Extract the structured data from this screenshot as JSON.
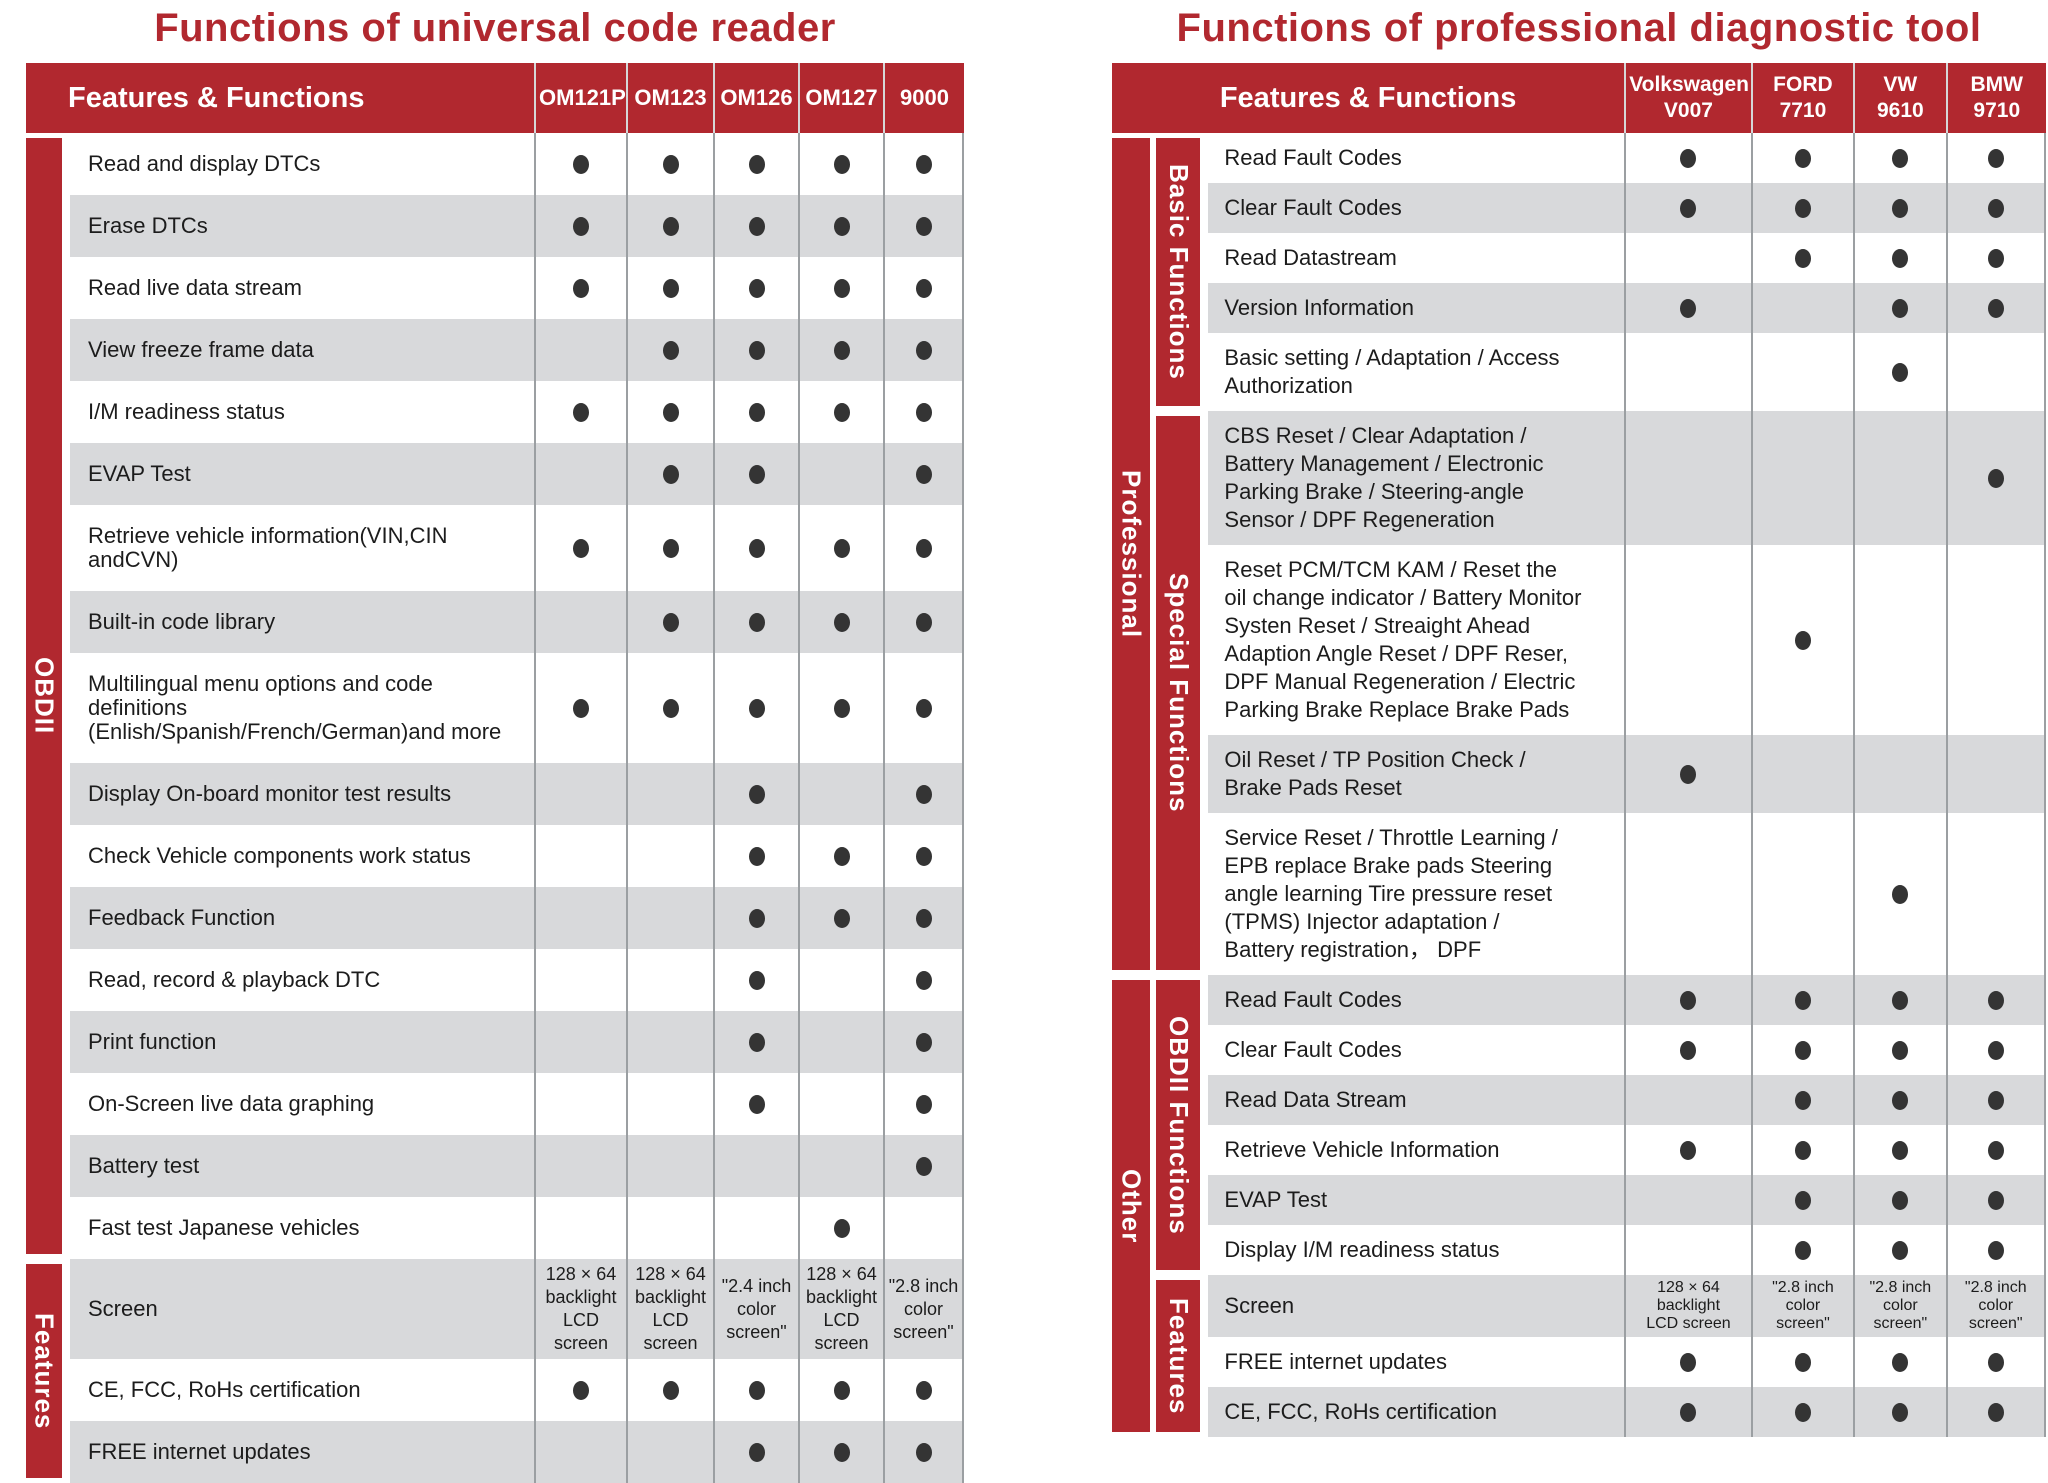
{
  "colors": {
    "brand_red": "#b1282f",
    "row_stripe_gray": "#d8d9db",
    "grid_line": "#9b9fa2",
    "dot": "#343434",
    "page_background": "#ffffff"
  },
  "chart_data": [
    {
      "type": "table",
      "title": "Functions of universal code reader",
      "header": "Features & Functions",
      "columns": [
        "OM121P",
        "OM123",
        "OM126",
        "OM127",
        "9000"
      ],
      "groups": [
        {
          "label": "OBDII",
          "rows": [
            {
              "feature": "Read and display DTCs",
              "values": [
                1,
                1,
                1,
                1,
                1
              ]
            },
            {
              "feature": "Erase DTCs",
              "values": [
                1,
                1,
                1,
                1,
                1
              ]
            },
            {
              "feature": "Read live data stream",
              "values": [
                1,
                1,
                1,
                1,
                1
              ]
            },
            {
              "feature": "View freeze frame data",
              "values": [
                0,
                1,
                1,
                1,
                1
              ]
            },
            {
              "feature": "I/M readiness status",
              "values": [
                1,
                1,
                1,
                1,
                1
              ]
            },
            {
              "feature": "EVAP Test",
              "values": [
                0,
                1,
                1,
                0,
                1
              ]
            },
            {
              "feature": "Retrieve vehicle information(VIN,CIN andCVN)",
              "values": [
                1,
                1,
                1,
                1,
                1
              ]
            },
            {
              "feature": "Built-in code library",
              "values": [
                0,
                1,
                1,
                1,
                1
              ]
            },
            {
              "feature": "Multilingual menu options and code definitions\n(Enlish/Spanish/French/German)and more",
              "values": [
                1,
                1,
                1,
                1,
                1
              ]
            },
            {
              "feature": "Display On-board monitor test results",
              "values": [
                0,
                0,
                1,
                0,
                1
              ]
            },
            {
              "feature": "Check Vehicle components work status",
              "values": [
                0,
                0,
                1,
                1,
                1
              ]
            },
            {
              "feature": "Feedback Function",
              "values": [
                0,
                0,
                1,
                1,
                1
              ]
            },
            {
              "feature": "Read, record & playback DTC",
              "values": [
                0,
                0,
                1,
                0,
                1
              ]
            },
            {
              "feature": "Print function",
              "values": [
                0,
                0,
                1,
                0,
                1
              ]
            },
            {
              "feature": "On-Screen live data graphing",
              "values": [
                0,
                0,
                1,
                0,
                1
              ]
            },
            {
              "feature": "Battery test",
              "values": [
                0,
                0,
                0,
                0,
                1
              ]
            },
            {
              "feature": "Fast test Japanese vehicles",
              "values": [
                0,
                0,
                0,
                1,
                0
              ]
            }
          ]
        },
        {
          "label": "Features",
          "rows": [
            {
              "feature": "Screen",
              "values": [
                "128 × 64\nbacklight\nLCD screen",
                "128 × 64\nbacklight\nLCD screen",
                "\"2.4 inch\ncolor\nscreen\"",
                "128 × 64\nbacklight\nLCD screen",
                "\"2.8 inch\ncolor\nscreen\""
              ]
            },
            {
              "feature": "CE, FCC, RoHs certification",
              "values": [
                1,
                1,
                1,
                1,
                1
              ]
            },
            {
              "feature": "FREE internet updates",
              "values": [
                0,
                0,
                1,
                1,
                1
              ]
            }
          ]
        }
      ]
    },
    {
      "type": "table",
      "title": "Functions of professional diagnostic tool",
      "header": "Features & Functions",
      "columns": [
        "Volkswagen\nV007",
        "FORD 7710",
        "VW 9610",
        "BMW 9710"
      ],
      "outer_groups": [
        {
          "label": "Professional",
          "groups": [
            {
              "label": "Basic Functions",
              "rows": [
                {
                  "feature": "Read Fault Codes",
                  "values": [
                    1,
                    1,
                    1,
                    1
                  ]
                },
                {
                  "feature": "Clear Fault Codes",
                  "values": [
                    1,
                    1,
                    1,
                    1
                  ]
                },
                {
                  "feature": "Read Datastream",
                  "values": [
                    0,
                    1,
                    1,
                    1
                  ]
                },
                {
                  "feature": "Version Information",
                  "values": [
                    1,
                    0,
                    1,
                    1
                  ]
                },
                {
                  "feature": "Basic setting / Adaptation / Access\nAuthorization",
                  "values": [
                    0,
                    0,
                    1,
                    0
                  ]
                }
              ]
            },
            {
              "label": "Special Functions",
              "rows": [
                {
                  "feature": "CBS Reset / Clear Adaptation /\nBattery Management / Electronic\nParking Brake / Steering-angle\nSensor / DPF Regeneration",
                  "values": [
                    0,
                    0,
                    0,
                    1
                  ]
                },
                {
                  "feature": "Reset PCM/TCM KAM / Reset the\noil change indicator / Battery Monitor\nSysten Reset / Streaight Ahead\nAdaption Angle Reset / DPF Reser,\nDPF Manual Regeneration / Electric\nParking Brake Replace Brake Pads",
                  "values": [
                    0,
                    1,
                    0,
                    0
                  ]
                },
                {
                  "feature": "Oil Reset / TP Position Check /\nBrake Pads Reset",
                  "values": [
                    1,
                    0,
                    0,
                    0
                  ]
                },
                {
                  "feature": "Service Reset / Throttle Learning /\nEPB replace Brake pads Steering\nangle learning Tire pressure reset\n(TPMS) Injector adaptation /\nBattery registration， DPF",
                  "values": [
                    0,
                    0,
                    1,
                    0
                  ]
                }
              ]
            }
          ]
        },
        {
          "label": "Other",
          "groups": [
            {
              "label": "OBDII Functions",
              "rows": [
                {
                  "feature": "Read Fault Codes",
                  "values": [
                    1,
                    1,
                    1,
                    1
                  ]
                },
                {
                  "feature": "Clear Fault Codes",
                  "values": [
                    1,
                    1,
                    1,
                    1
                  ]
                },
                {
                  "feature": "Read Data Stream",
                  "values": [
                    0,
                    1,
                    1,
                    1
                  ]
                },
                {
                  "feature": "Retrieve Vehicle Information",
                  "values": [
                    1,
                    1,
                    1,
                    1
                  ]
                },
                {
                  "feature": "EVAP Test",
                  "values": [
                    0,
                    1,
                    1,
                    1
                  ]
                },
                {
                  "feature": "Display I/M readiness status",
                  "values": [
                    0,
                    1,
                    1,
                    1
                  ]
                }
              ]
            },
            {
              "label": "Features",
              "rows": [
                {
                  "feature": "Screen",
                  "values": [
                    "128 × 64\nbacklight\nLCD screen",
                    "\"2.8 inch\ncolor\nscreen\"",
                    "\"2.8 inch\ncolor\nscreen\"",
                    "\"2.8 inch\ncolor\nscreen\""
                  ]
                },
                {
                  "feature": "FREE internet updates",
                  "values": [
                    1,
                    1,
                    1,
                    1
                  ]
                },
                {
                  "feature": "CE, FCC, RoHs certification",
                  "values": [
                    1,
                    1,
                    1,
                    1
                  ]
                }
              ]
            }
          ]
        }
      ]
    }
  ]
}
